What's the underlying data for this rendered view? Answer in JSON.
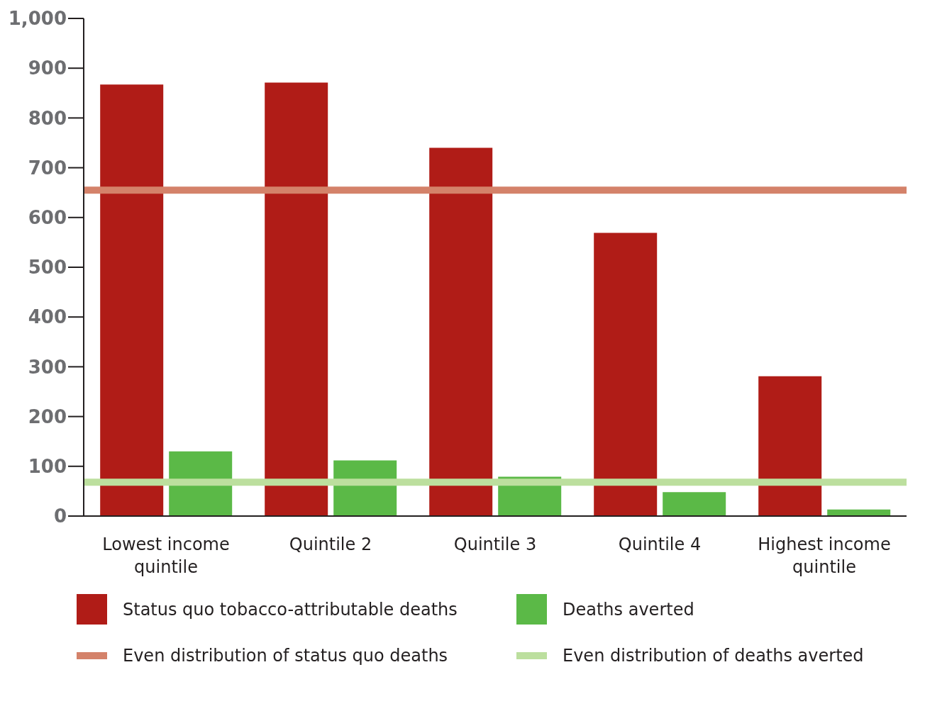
{
  "chart_data": {
    "type": "bar",
    "categories": [
      "Lowest income quintile",
      "Quintile 2",
      "Quintile 3",
      "Quintile 4",
      "Highest income quintile"
    ],
    "series": [
      {
        "name": "Status quo tobacco-attributable deaths",
        "color": "#b01c17",
        "values": [
          867,
          871,
          740,
          569,
          281
        ]
      },
      {
        "name": "Deaths averted",
        "color": "#5bb947",
        "values": [
          130,
          112,
          79,
          48,
          13
        ]
      }
    ],
    "ref_lines": [
      {
        "axis": "y",
        "value": 655,
        "label": "Even distribution of status quo deaths",
        "color": "#d4826a"
      },
      {
        "axis": "y",
        "value": 68,
        "label": "Even distribution of deaths averted",
        "color": "#bcdf9e"
      }
    ],
    "ylim": [
      0,
      1000
    ],
    "yticks": [
      0,
      100,
      200,
      300,
      400,
      500,
      600,
      700,
      800,
      900,
      {
        "value": 1000,
        "label": "1,000"
      }
    ],
    "grid": false,
    "legend": "bottom"
  }
}
